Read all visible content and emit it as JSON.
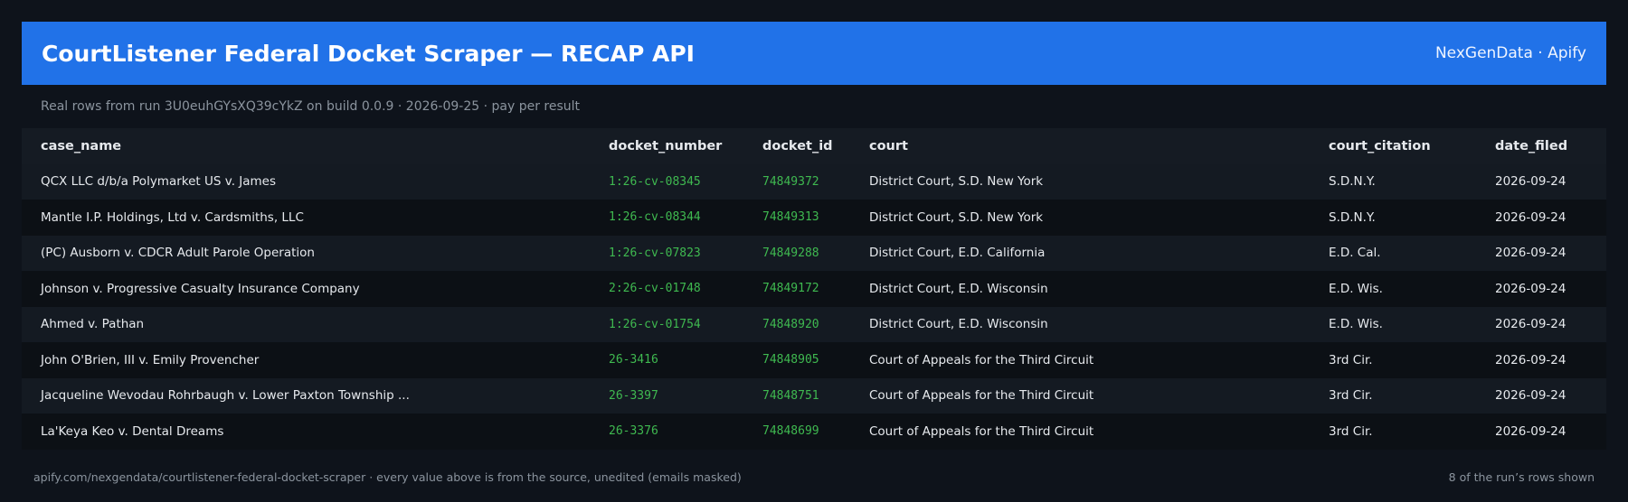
{
  "header": {
    "title": "CourtListener Federal Docket Scraper — RECAP API",
    "brand": "NexGenData · Apify"
  },
  "subtitle": "Real rows from run 3U0euhGYsXQ39cYkZ on build 0.0.9 · 2026-09-25 · pay per result",
  "table": {
    "columns": [
      "case_name",
      "docket_number",
      "docket_id",
      "court",
      "court_citation",
      "date_filed"
    ],
    "rows": [
      {
        "case_name": "QCX LLC d/b/a Polymarket US v. James",
        "docket_number": "1:26-cv-08345",
        "docket_id": "74849372",
        "court": "District Court, S.D. New York",
        "court_citation": "S.D.N.Y.",
        "date_filed": "2026-09-24"
      },
      {
        "case_name": "Mantle I.P. Holdings, Ltd v. Cardsmiths, LLC",
        "docket_number": "1:26-cv-08344",
        "docket_id": "74849313",
        "court": "District Court, S.D. New York",
        "court_citation": "S.D.N.Y.",
        "date_filed": "2026-09-24"
      },
      {
        "case_name": "(PC) Ausborn v. CDCR Adult Parole Operation",
        "docket_number": "1:26-cv-07823",
        "docket_id": "74849288",
        "court": "District Court, E.D. California",
        "court_citation": "E.D. Cal.",
        "date_filed": "2026-09-24"
      },
      {
        "case_name": "Johnson v. Progressive Casualty Insurance Company",
        "docket_number": "2:26-cv-01748",
        "docket_id": "74849172",
        "court": "District Court, E.D. Wisconsin",
        "court_citation": "E.D. Wis.",
        "date_filed": "2026-09-24"
      },
      {
        "case_name": "Ahmed v. Pathan",
        "docket_number": "1:26-cv-01754",
        "docket_id": "74848920",
        "court": "District Court, E.D. Wisconsin",
        "court_citation": "E.D. Wis.",
        "date_filed": "2026-09-24"
      },
      {
        "case_name": "John O'Brien, III v. Emily Provencher",
        "docket_number": "26-3416",
        "docket_id": "74848905",
        "court": "Court of Appeals for the Third Circuit",
        "court_citation": "3rd Cir.",
        "date_filed": "2026-09-24"
      },
      {
        "case_name": "Jacqueline Wevodau Rohrbaugh v. Lower Paxton Township ...",
        "docket_number": "26-3397",
        "docket_id": "74848751",
        "court": "Court of Appeals for the Third Circuit",
        "court_citation": "3rd Cir.",
        "date_filed": "2026-09-24"
      },
      {
        "case_name": "La'Keya Keo v. Dental Dreams",
        "docket_number": "26-3376",
        "docket_id": "74848699",
        "court": "Court of Appeals for the Third Circuit",
        "court_citation": "3rd Cir.",
        "date_filed": "2026-09-24"
      }
    ]
  },
  "footer": {
    "left": "apify.com/nexgendata/courtlistener-federal-docket-scraper  ·  every value above is from the source, unedited (emails masked)",
    "right": "8 of the run’s rows shown"
  },
  "colors": {
    "background": "#0e131b",
    "header": "#2172e8",
    "accent_green": "#3fb950"
  }
}
